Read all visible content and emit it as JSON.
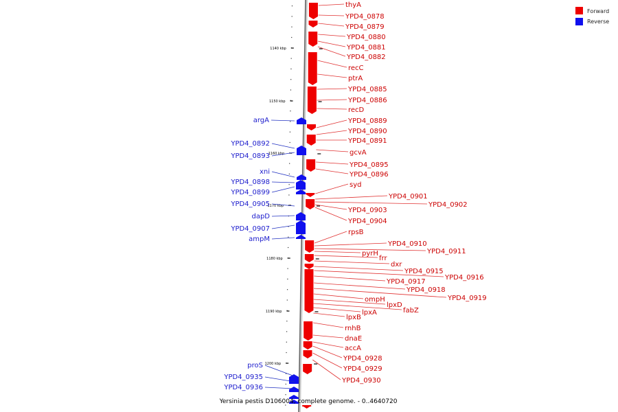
{
  "caption": "Yersinia pestis D106004, complete genome. - 0..4640720",
  "legend": {
    "forward": {
      "label": "Forward",
      "color": "#ee0000"
    },
    "reverse": {
      "label": "Reverse",
      "color": "#1010ee"
    }
  },
  "ticks": [
    "1140 kbp",
    "1150 kbp",
    "1160 kbp",
    "1170 kbp",
    "1180 kbp",
    "1190 kbp",
    "1200 kbp"
  ],
  "forward_genes": [
    "thyA",
    "YPD4_0878",
    "YPD4_0879",
    "YPD4_0880",
    "YPD4_0881",
    "YPD4_0882",
    "recC",
    "ptrA",
    "YPD4_0885",
    "YPD4_0886",
    "recD",
    "YPD4_0889",
    "YPD4_0890",
    "YPD4_0891",
    "gcvA",
    "YPD4_0895",
    "YPD4_0896",
    "syd",
    "YPD4_0901",
    "YPD4_0902",
    "YPD4_0903",
    "YPD4_0904",
    "rpsB",
    "YPD4_0910",
    "YPD4_0911",
    "pyrH",
    "frr",
    "dxr",
    "YPD4_0915",
    "YPD4_0916",
    "YPD4_0917",
    "YPD4_0918",
    "YPD4_0919",
    "ompH",
    "lpxD",
    "fabZ",
    "lpxA",
    "lpxB",
    "rnhB",
    "dnaE",
    "accA",
    "YPD4_0928",
    "YPD4_0929",
    "YPD4_0930"
  ],
  "reverse_genes": [
    "argA",
    "YPD4_0892",
    "YPD4_0893",
    "xni",
    "YPD4_0898",
    "YPD4_0899",
    "YPD4_0905",
    "dapD",
    "YPD4_0907",
    "ampM",
    "proS",
    "YPD4_0935",
    "YPD4_0936"
  ]
}
